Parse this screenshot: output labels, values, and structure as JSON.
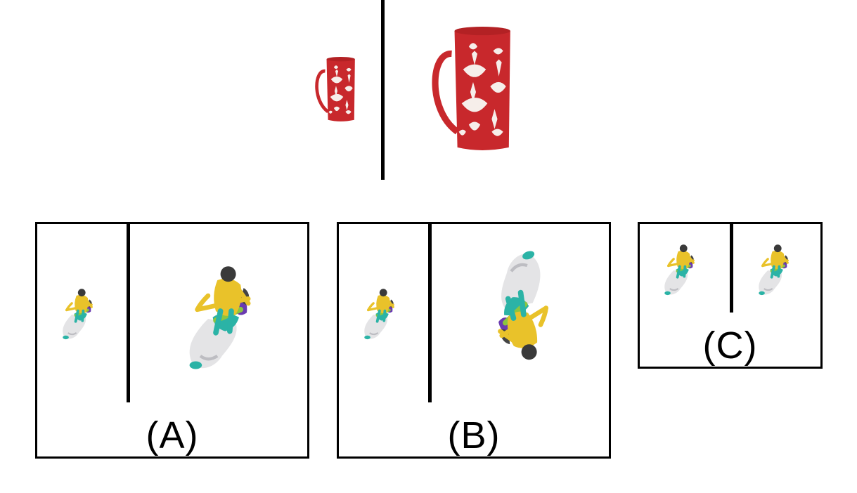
{
  "example": {
    "source_object": "red-damask-mug",
    "target_object": "red-damask-mug-enlarged"
  },
  "options": [
    {
      "label": "(A)",
      "source_object": "scooter-rider-small",
      "target_object": "scooter-rider-enlarged"
    },
    {
      "label": "(B)",
      "source_object": "scooter-rider-small",
      "target_object": "scooter-rider-enlarged-rotated"
    },
    {
      "label": "(C)",
      "source_object": "scooter-rider-small",
      "target_object": "scooter-rider-small"
    }
  ],
  "colors": {
    "mug_red": "#c8282c",
    "pattern_white": "#f6eeea",
    "rider_yellow": "#e9c22a",
    "scooter_white": "#e4e4e6",
    "teal": "#2bb3a6",
    "green": "#8bc63f",
    "purple": "#6a3bb0",
    "hair": "#3a3a3a"
  }
}
